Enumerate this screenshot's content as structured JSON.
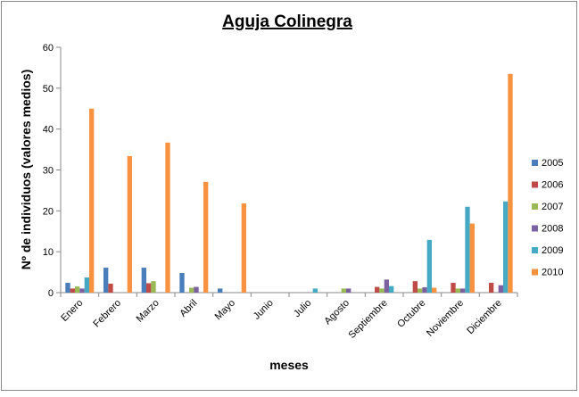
{
  "chart_data": {
    "type": "bar",
    "title": "Aguja Colinegra",
    "x_label": "meses",
    "y_label": "Nº de individuos (valores medios)",
    "categories": [
      "Enero",
      "Febrero",
      "Marzo",
      "Abril",
      "Mayo",
      "Junio",
      "Julio",
      "Agosto",
      "Septiembre",
      "Octubre",
      "Noviembre",
      "Diciembre"
    ],
    "series": [
      {
        "name": "2005",
        "color": "#4a7ebb",
        "values": [
          2.4,
          6.1,
          6.1,
          4.8,
          1,
          0,
          0,
          0,
          0,
          0,
          0,
          0
        ]
      },
      {
        "name": "2006",
        "color": "#be4b48",
        "values": [
          1,
          2.2,
          2.3,
          0,
          0,
          0,
          0,
          0,
          1.4,
          2.8,
          2.4,
          2.4
        ]
      },
      {
        "name": "2007",
        "color": "#98b954",
        "values": [
          1.5,
          0,
          2.8,
          1.2,
          0,
          0,
          0,
          1,
          1,
          1,
          1,
          0
        ]
      },
      {
        "name": "2008",
        "color": "#7d60a0",
        "values": [
          1,
          0,
          0,
          1.4,
          0,
          0,
          0,
          1,
          3.2,
          1.3,
          1,
          1.8
        ]
      },
      {
        "name": "2009",
        "color": "#46aac5",
        "values": [
          3.7,
          0,
          0,
          0,
          0,
          0,
          1,
          0,
          1.6,
          12.9,
          21,
          22.3
        ]
      },
      {
        "name": "2010",
        "color": "#f69240",
        "values": [
          45,
          33.4,
          36.7,
          27.1,
          21.8,
          0,
          0,
          0,
          0,
          1.2,
          16.9,
          53.5
        ]
      }
    ],
    "ylim": [
      0,
      60
    ],
    "yticks": [
      0,
      10,
      20,
      30,
      40,
      50,
      60
    ],
    "legend": "right"
  }
}
